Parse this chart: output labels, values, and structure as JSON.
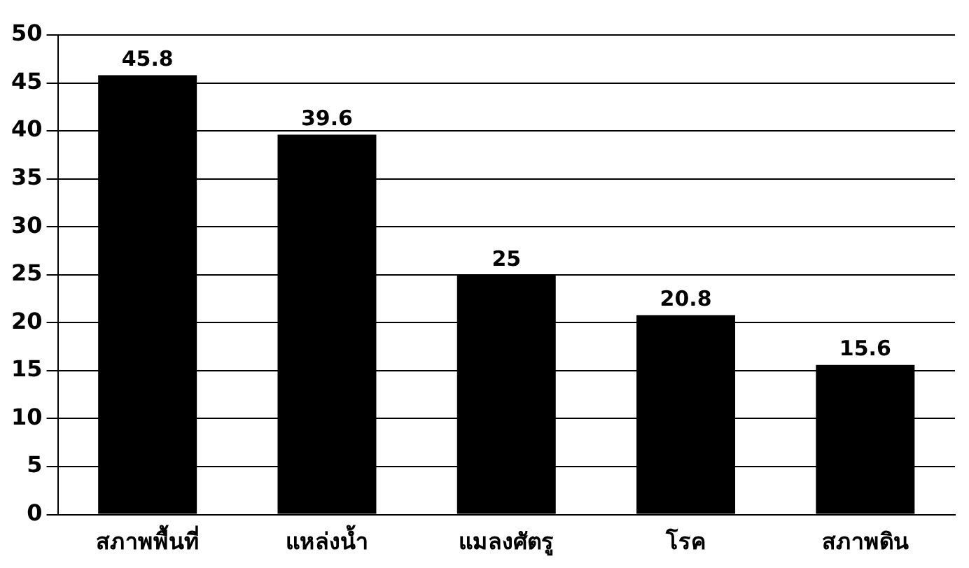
{
  "chart_data": {
    "type": "bar",
    "categories": [
      "สภาพพื้นที่",
      "แหล่งน้ำ",
      "แมลงศัตรู",
      "โรค",
      "สภาพดิน"
    ],
    "values": [
      45.8,
      39.6,
      25,
      20.8,
      15.6
    ],
    "color": "#000000",
    "ylim": [
      0,
      50
    ],
    "yticks": [
      0,
      5,
      10,
      15,
      20,
      25,
      30,
      35,
      40,
      45,
      50
    ],
    "grid": "y",
    "data_labels": true
  }
}
